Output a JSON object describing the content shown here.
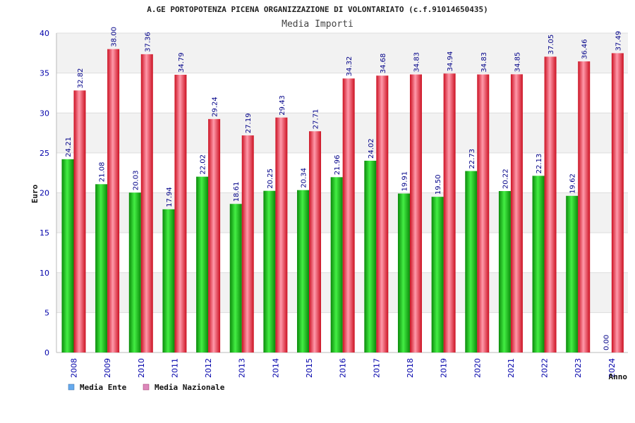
{
  "chart_data": {
    "type": "bar",
    "title": "A.GE PORTOPOTENZA PICENA ORGANIZZAZIONE DI VOLONTARIATO (c.f.91014650435)",
    "subtitle": "Media Importi",
    "xlabel": "Anno",
    "ylabel": "Euro",
    "ylim": [
      0,
      40
    ],
    "yticks": [
      0,
      5,
      10,
      15,
      20,
      25,
      30,
      35,
      40
    ],
    "grid": true,
    "legend_position": "bottom-left",
    "categories": [
      "2008",
      "2009",
      "2010",
      "2011",
      "2012",
      "2013",
      "2014",
      "2015",
      "2016",
      "2017",
      "2018",
      "2019",
      "2020",
      "2021",
      "2022",
      "2023",
      "2024"
    ],
    "series": [
      {
        "name": "Media Ente",
        "legend_color": "#66aaee",
        "bar_color": "#11bb11",
        "values": [
          24.21,
          21.08,
          20.03,
          17.94,
          22.02,
          18.61,
          20.25,
          20.34,
          21.96,
          24.02,
          19.91,
          19.5,
          22.73,
          20.22,
          22.13,
          19.62,
          0.0
        ],
        "labels": [
          "24.21",
          "21.08",
          "20.03",
          "17.94",
          "22.02",
          "18.61",
          "20.25",
          "20.34",
          "21.96",
          "24.02",
          "19.91",
          "19.50",
          "22.73",
          "20.22",
          "22.13",
          "19.62",
          "0.00"
        ]
      },
      {
        "name": "Media Nazionale",
        "legend_color": "#dd88bb",
        "bar_color": "#ee2233",
        "values": [
          32.82,
          38.0,
          37.36,
          34.79,
          29.24,
          27.19,
          29.43,
          27.71,
          34.32,
          34.68,
          34.83,
          34.94,
          34.83,
          34.85,
          37.05,
          36.46,
          37.49
        ],
        "labels": [
          "32.82",
          "38.00",
          "37.36",
          "34.79",
          "29.24",
          "27.19",
          "29.43",
          "27.71",
          "34.32",
          "34.68",
          "34.83",
          "34.94",
          "34.83",
          "34.85",
          "37.05",
          "36.46",
          "37.49"
        ]
      }
    ]
  }
}
